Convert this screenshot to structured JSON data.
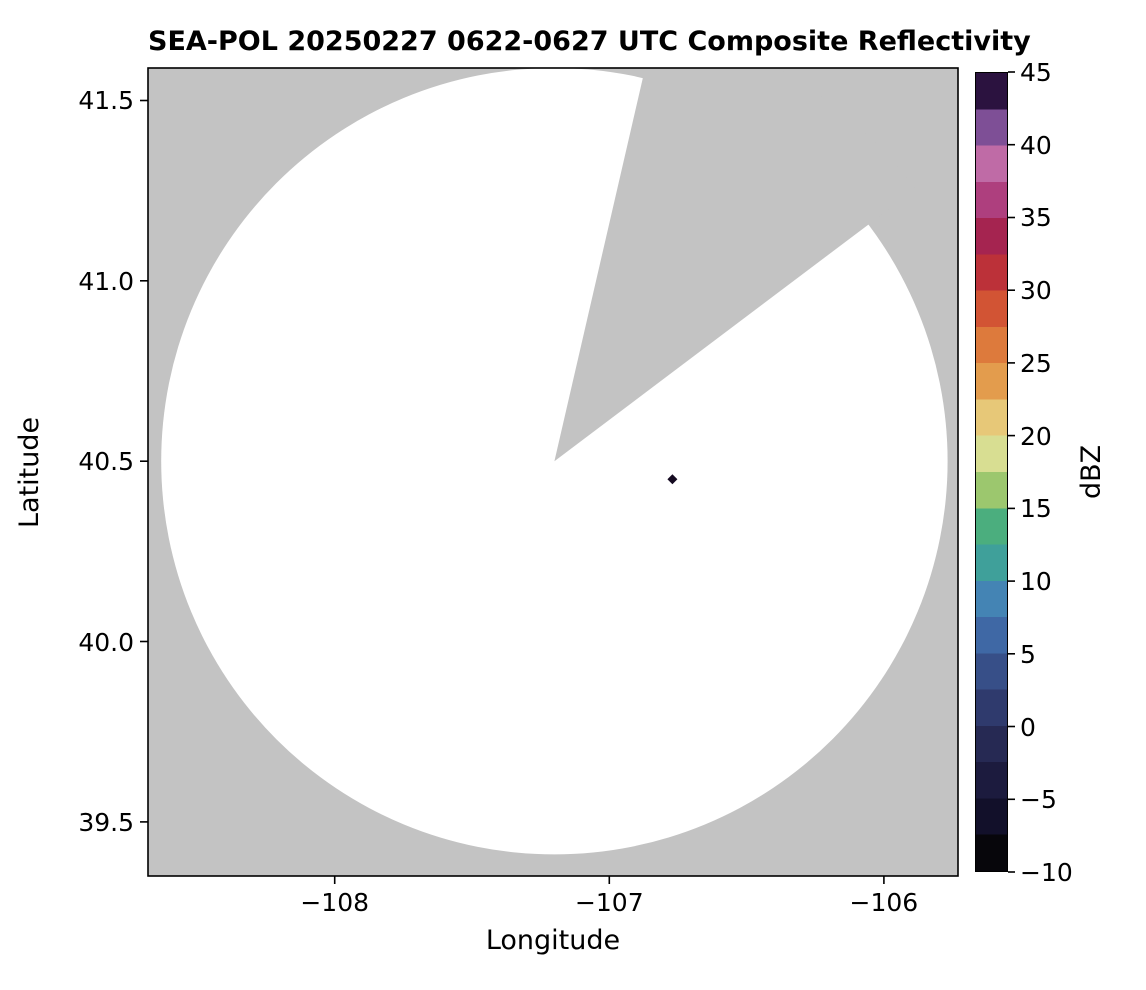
{
  "chart_data": {
    "type": "heatmap",
    "title": "SEA-POL 20250227 0622-0627 UTC Composite Reflectivity",
    "xlabel": "Longitude",
    "ylabel": "Latitude",
    "xlim": [
      -108.68,
      -105.73
    ],
    "ylim": [
      39.35,
      41.59
    ],
    "grid": false,
    "xticks": {
      "values": [
        -108,
        -107,
        -106
      ],
      "labels": [
        "−108",
        "−107",
        "−106"
      ]
    },
    "yticks": {
      "values": [
        41.5,
        41.0,
        40.5,
        40.0,
        39.5
      ],
      "labels": [
        "41.5",
        "41.0",
        "40.5",
        "40.0",
        "39.5"
      ]
    },
    "nodata_color": "#c3c3c3",
    "coverage_color": "#ffffff",
    "radar": {
      "name": "SEA-POL",
      "center_lon": -107.2,
      "center_lat": 40.5,
      "range_deg_lat": 1.09,
      "blocked_sector_azimuth_deg": [
        13,
        53
      ]
    },
    "echoes": [
      {
        "lon": -106.77,
        "lat": 40.45,
        "dbz_estimate": 45,
        "color": "#150a21",
        "shape": "diamond"
      }
    ],
    "colorbar": {
      "label": "dBZ",
      "min": -10,
      "max": 45,
      "band_step_dbz": 2.5,
      "ticks": {
        "values": [
          45,
          40,
          35,
          30,
          25,
          20,
          15,
          10,
          5,
          0,
          -5,
          -10
        ],
        "labels": [
          "45",
          "40",
          "35",
          "30",
          "25",
          "20",
          "15",
          "10",
          "5",
          "0",
          "−5",
          "−10"
        ]
      },
      "colors_bottom_to_top": [
        "#07060b",
        "#12102a",
        "#1c1b3e",
        "#262953",
        "#2f3a6d",
        "#374f88",
        "#3f68a5",
        "#4484b4",
        "#3fa09a",
        "#4bae7e",
        "#9cc76e",
        "#d8de92",
        "#e7c878",
        "#e39c4d",
        "#dd7a3c",
        "#d25434",
        "#bc3139",
        "#a52450",
        "#ae3f7e",
        "#bf6ba6",
        "#7e4f96",
        "#2b123f"
      ]
    }
  }
}
